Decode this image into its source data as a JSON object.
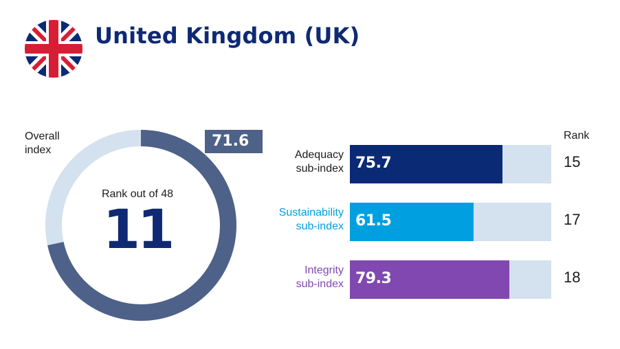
{
  "header": {
    "title": "United Kingdom (UK)",
    "flag_icon": "uk-flag-icon"
  },
  "colors": {
    "navy": "#0f2a72",
    "donut_fill": "#4e6188",
    "donut_track": "#d4e1ee",
    "adequacy": "#0a2a75",
    "sustainability": "#00a0e0",
    "integrity": "#8048b0",
    "bar_track": "#d4e1ee"
  },
  "chart_data": [
    {
      "type": "pie",
      "title": "Overall index",
      "value": 71.6,
      "max": 100,
      "value_label": "71.6",
      "center_caption": "Rank out of 48",
      "center_value": "11"
    },
    {
      "type": "bar",
      "orientation": "horizontal",
      "categories": [
        "Adequacy sub-index",
        "Sustainability sub-index",
        "Integrity sub-index"
      ],
      "xlim": [
        0,
        100
      ],
      "rank_header": "Rank",
      "bars": [
        {
          "label_line1": "Adequacy",
          "label_line2": "sub-index",
          "value": 75.7,
          "value_label": "75.7",
          "rank": "15",
          "color": "#0a2a75",
          "label_color": "#1b1b1b"
        },
        {
          "label_line1": "Sustainability",
          "label_line2": "sub-index",
          "value": 61.5,
          "value_label": "61.5",
          "rank": "17",
          "color": "#00a0e0",
          "label_color": "#00a0e0"
        },
        {
          "label_line1": "Integrity",
          "label_line2": "sub-index",
          "value": 79.3,
          "value_label": "79.3",
          "rank": "18",
          "color": "#8048b0",
          "label_color": "#8048b0"
        }
      ]
    }
  ],
  "overall": {
    "label_line1": "Overall",
    "label_line2": "index"
  }
}
